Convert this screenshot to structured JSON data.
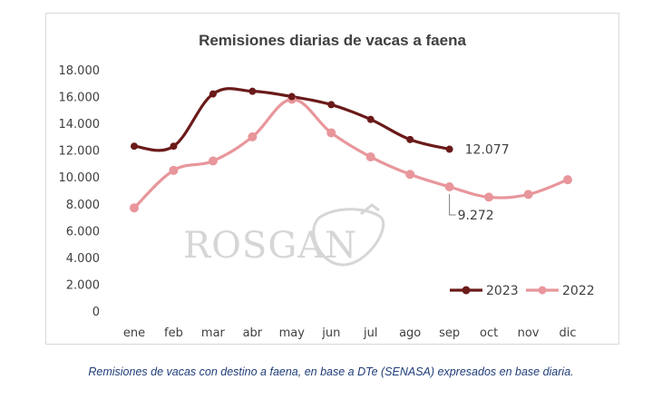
{
  "chart_data": {
    "type": "line",
    "title": "Remisiones diarias de vacas a faena",
    "categories": [
      "ene",
      "feb",
      "mar",
      "abr",
      "may",
      "jun",
      "jul",
      "ago",
      "sep",
      "oct",
      "nov",
      "dic"
    ],
    "ylim": [
      0,
      18000
    ],
    "yticks": [
      0,
      2000,
      4000,
      6000,
      8000,
      10000,
      12000,
      14000,
      16000,
      18000
    ],
    "ytick_labels": [
      "0",
      "2.000",
      "4.000",
      "6.000",
      "8.000",
      "10.000",
      "12.000",
      "14.000",
      "16.000",
      "18.000"
    ],
    "grid": false,
    "legend": "bottom-right",
    "series": [
      {
        "name": "2023",
        "color": "#6b1a1a",
        "values": [
          12300,
          12300,
          16200,
          16400,
          16000,
          15400,
          14300,
          12800,
          12077,
          null,
          null,
          null
        ],
        "end_label": "12.077"
      },
      {
        "name": "2022",
        "color": "#e8969b",
        "values": [
          7700,
          10500,
          11200,
          13000,
          15800,
          13300,
          11500,
          10200,
          9272,
          8500,
          8700,
          9800
        ],
        "end_label": "9.272"
      }
    ]
  },
  "watermark": {
    "text": "ROSGAN"
  },
  "caption": "Remisiones de vacas con destino a faena, en base a DTe (SENASA) expresados en base diaria."
}
